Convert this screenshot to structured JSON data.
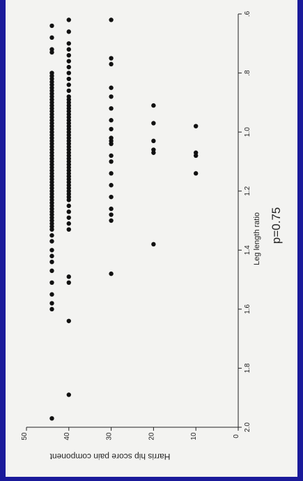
{
  "chart_data": {
    "type": "scatter",
    "xlabel": "Leg length ratio",
    "ylabel": "Harris hip score pain component",
    "annotation": "p=0.75",
    "xlim": [
      0.6,
      2.0
    ],
    "ylim": [
      0,
      50
    ],
    "x_ticks": [
      0.6,
      0.8,
      1.0,
      1.2,
      1.4,
      1.6,
      1.8,
      2.0
    ],
    "x_tick_labels": [
      ".6",
      ".8",
      "1.0",
      "1.2",
      "1.4",
      "1.6",
      "1.8",
      "2.0"
    ],
    "y_ticks": [
      0,
      10,
      20,
      30,
      40,
      50
    ],
    "y_tick_labels": [
      "0",
      "10",
      "20",
      "30",
      "40",
      "50"
    ],
    "series": [
      {
        "points": [
          [
            0.64,
            44
          ],
          [
            0.68,
            44
          ],
          [
            0.72,
            44
          ],
          [
            0.73,
            44
          ],
          [
            0.8,
            44
          ],
          [
            0.81,
            44
          ],
          [
            0.82,
            44
          ],
          [
            0.83,
            44
          ],
          [
            0.84,
            44
          ],
          [
            0.85,
            44
          ],
          [
            0.86,
            44
          ],
          [
            0.87,
            44
          ],
          [
            0.88,
            44
          ],
          [
            0.89,
            44
          ],
          [
            0.9,
            44
          ],
          [
            0.91,
            44
          ],
          [
            0.92,
            44
          ],
          [
            0.93,
            44
          ],
          [
            0.94,
            44
          ],
          [
            0.95,
            44
          ],
          [
            0.96,
            44
          ],
          [
            0.97,
            44
          ],
          [
            0.98,
            44
          ],
          [
            0.99,
            44
          ],
          [
            1.0,
            44
          ],
          [
            1.01,
            44
          ],
          [
            1.02,
            44
          ],
          [
            1.03,
            44
          ],
          [
            1.04,
            44
          ],
          [
            1.05,
            44
          ],
          [
            1.06,
            44
          ],
          [
            1.07,
            44
          ],
          [
            1.08,
            44
          ],
          [
            1.09,
            44
          ],
          [
            1.1,
            44
          ],
          [
            1.11,
            44
          ],
          [
            1.12,
            44
          ],
          [
            1.13,
            44
          ],
          [
            1.14,
            44
          ],
          [
            1.15,
            44
          ],
          [
            1.16,
            44
          ],
          [
            1.17,
            44
          ],
          [
            1.18,
            44
          ],
          [
            1.19,
            44
          ],
          [
            1.2,
            44
          ],
          [
            1.21,
            44
          ],
          [
            1.22,
            44
          ],
          [
            1.23,
            44
          ],
          [
            1.24,
            44
          ],
          [
            1.25,
            44
          ],
          [
            1.26,
            44
          ],
          [
            1.27,
            44
          ],
          [
            1.28,
            44
          ],
          [
            1.29,
            44
          ],
          [
            1.3,
            44
          ],
          [
            1.31,
            44
          ],
          [
            1.32,
            44
          ],
          [
            1.33,
            44
          ],
          [
            1.35,
            44
          ],
          [
            1.37,
            44
          ],
          [
            1.4,
            44
          ],
          [
            1.42,
            44
          ],
          [
            1.44,
            44
          ],
          [
            1.47,
            44
          ],
          [
            1.51,
            44
          ],
          [
            1.55,
            44
          ],
          [
            1.58,
            44
          ],
          [
            1.6,
            44
          ],
          [
            1.97,
            44
          ],
          [
            0.62,
            40
          ],
          [
            0.66,
            40
          ],
          [
            0.7,
            40
          ],
          [
            0.72,
            40
          ],
          [
            0.74,
            40
          ],
          [
            0.76,
            40
          ],
          [
            0.78,
            40
          ],
          [
            0.8,
            40
          ],
          [
            0.82,
            40
          ],
          [
            0.84,
            40
          ],
          [
            0.86,
            40
          ],
          [
            0.88,
            40
          ],
          [
            0.89,
            40
          ],
          [
            0.9,
            40
          ],
          [
            0.91,
            40
          ],
          [
            0.92,
            40
          ],
          [
            0.93,
            40
          ],
          [
            0.94,
            40
          ],
          [
            0.95,
            40
          ],
          [
            0.96,
            40
          ],
          [
            0.97,
            40
          ],
          [
            0.98,
            40
          ],
          [
            0.99,
            40
          ],
          [
            1.0,
            40
          ],
          [
            1.01,
            40
          ],
          [
            1.02,
            40
          ],
          [
            1.03,
            40
          ],
          [
            1.04,
            40
          ],
          [
            1.05,
            40
          ],
          [
            1.06,
            40
          ],
          [
            1.07,
            40
          ],
          [
            1.08,
            40
          ],
          [
            1.09,
            40
          ],
          [
            1.1,
            40
          ],
          [
            1.11,
            40
          ],
          [
            1.12,
            40
          ],
          [
            1.13,
            40
          ],
          [
            1.14,
            40
          ],
          [
            1.15,
            40
          ],
          [
            1.16,
            40
          ],
          [
            1.17,
            40
          ],
          [
            1.18,
            40
          ],
          [
            1.19,
            40
          ],
          [
            1.2,
            40
          ],
          [
            1.21,
            40
          ],
          [
            1.22,
            40
          ],
          [
            1.23,
            40
          ],
          [
            1.25,
            40
          ],
          [
            1.27,
            40
          ],
          [
            1.29,
            40
          ],
          [
            1.31,
            40
          ],
          [
            1.33,
            40
          ],
          [
            1.49,
            40
          ],
          [
            1.51,
            40
          ],
          [
            1.64,
            40
          ],
          [
            1.89,
            40
          ],
          [
            0.62,
            30
          ],
          [
            0.75,
            30
          ],
          [
            0.77,
            30
          ],
          [
            0.85,
            30
          ],
          [
            0.88,
            30
          ],
          [
            0.92,
            30
          ],
          [
            0.96,
            30
          ],
          [
            0.99,
            30
          ],
          [
            1.02,
            30
          ],
          [
            1.03,
            30
          ],
          [
            1.04,
            30
          ],
          [
            1.08,
            30
          ],
          [
            1.1,
            30
          ],
          [
            1.14,
            30
          ],
          [
            1.18,
            30
          ],
          [
            1.22,
            30
          ],
          [
            1.26,
            30
          ],
          [
            1.28,
            30
          ],
          [
            1.3,
            30
          ],
          [
            1.48,
            30
          ],
          [
            0.91,
            20
          ],
          [
            0.97,
            20
          ],
          [
            1.03,
            20
          ],
          [
            1.06,
            20
          ],
          [
            1.07,
            20
          ],
          [
            1.38,
            20
          ],
          [
            0.98,
            10
          ],
          [
            1.07,
            10
          ],
          [
            1.08,
            10
          ],
          [
            1.14,
            10
          ]
        ]
      }
    ]
  },
  "colors": {
    "frame": "#1a1a9a",
    "panel": "#f3f3f1",
    "ink": "#222222",
    "points": "#111111"
  }
}
